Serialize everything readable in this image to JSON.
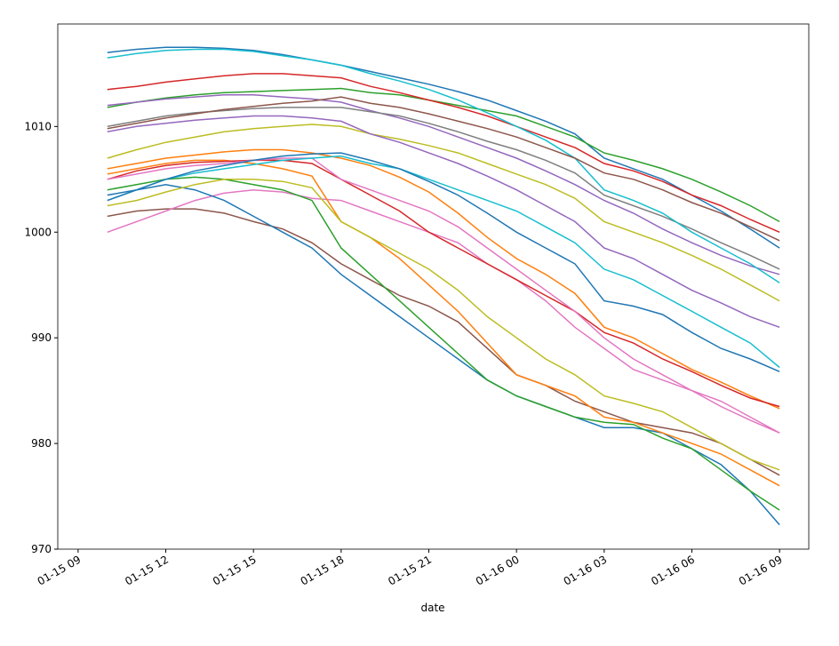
{
  "chart_data": {
    "type": "line",
    "xlabel": "date",
    "x": [
      "01-15 10",
      "01-15 11",
      "01-15 12",
      "01-15 13",
      "01-15 14",
      "01-15 15",
      "01-15 16",
      "01-15 17",
      "01-15 18",
      "01-15 19",
      "01-15 20",
      "01-15 21",
      "01-15 22",
      "01-15 23",
      "01-16 00",
      "01-16 01",
      "01-16 02",
      "01-16 03",
      "01-16 04",
      "01-16 05",
      "01-16 06",
      "01-16 07",
      "01-16 08",
      "01-16 09"
    ],
    "xlim": [
      "01-15 08",
      "01-16 10"
    ],
    "xticks": [
      "01-15 09",
      "01-15 12",
      "01-15 15",
      "01-15 18",
      "01-15 21",
      "01-16 00",
      "01-16 03",
      "01-16 06",
      "01-16 09"
    ],
    "ylim": [
      970,
      1019.7
    ],
    "yticks": [
      970,
      980,
      990,
      1000,
      1010
    ],
    "series": [
      {
        "color": "#1f77b4",
        "values": [
          1017,
          1017.3,
          1017.5,
          1017.5,
          1017.4,
          1017.2,
          1016.8,
          1016.3,
          1015.8,
          1015.2,
          1014.6,
          1014,
          1013.3,
          1012.5,
          1011.5,
          1010.5,
          1009.3,
          1007,
          1006,
          1005,
          1003.5,
          1002,
          1000.3,
          998.5
        ]
      },
      {
        "color": "#ff7f0e",
        "values": [
          1006,
          1006.5,
          1007,
          1007.3,
          1007.6,
          1007.8,
          1007.8,
          1007.5,
          1007,
          1006.3,
          1005.2,
          1003.8,
          1001.8,
          999.5,
          997.5,
          996,
          994.2,
          991,
          990,
          988.5,
          987,
          985.8,
          984.5,
          983.3
        ]
      },
      {
        "color": "#2ca02c",
        "values": [
          1011.8,
          1012.3,
          1012.7,
          1013,
          1013.2,
          1013.3,
          1013.4,
          1013.5,
          1013.6,
          1013.2,
          1013,
          1012.5,
          1012,
          1011.5,
          1011,
          1010,
          1009,
          1007.5,
          1006.8,
          1006,
          1005,
          1003.8,
          1002.5,
          1001
        ]
      },
      {
        "color": "#d62728",
        "values": [
          1013.5,
          1013.8,
          1014.2,
          1014.5,
          1014.8,
          1015,
          1015,
          1014.8,
          1014.6,
          1013.8,
          1013.2,
          1012.5,
          1011.8,
          1011,
          1010,
          1009,
          1008,
          1006.5,
          1005.8,
          1004.8,
          1003.5,
          1002.5,
          1001.2,
          1000
        ]
      },
      {
        "color": "#9467bd",
        "values": [
          1012,
          1012.3,
          1012.6,
          1012.8,
          1013,
          1013,
          1012.8,
          1012.6,
          1012.3,
          1011.5,
          1010.8,
          1010,
          1009,
          1008,
          1007,
          1005.8,
          1004.5,
          1003,
          1001.8,
          1000.3,
          999,
          997.8,
          996.8,
          996
        ]
      },
      {
        "color": "#8c564b",
        "values": [
          1001.5,
          1002,
          1002.2,
          1002.2,
          1001.8,
          1001,
          1000.3,
          999,
          997,
          995.5,
          994,
          993,
          991.5,
          989,
          986.5,
          985.5,
          984,
          983,
          982,
          981.5,
          981,
          980,
          978.5,
          977
        ]
      },
      {
        "color": "#e377c2",
        "values": [
          1000,
          1001,
          1002,
          1003,
          1003.7,
          1004,
          1003.8,
          1003.2,
          1003,
          1002,
          1001,
          1000,
          999,
          997,
          995.5,
          993.5,
          991,
          989,
          987,
          986,
          985,
          983.5,
          982.2,
          981
        ]
      },
      {
        "color": "#7f7f7f",
        "values": [
          1010,
          1010.5,
          1011,
          1011.3,
          1011.5,
          1011.7,
          1011.8,
          1011.8,
          1011.8,
          1011.4,
          1011,
          1010.3,
          1009.5,
          1008.6,
          1007.8,
          1006.8,
          1005.6,
          1003.5,
          1002.5,
          1001.5,
          1000.3,
          999,
          997.8,
          996.5
        ]
      },
      {
        "color": "#bcbd22",
        "values": [
          1007,
          1007.8,
          1008.5,
          1009,
          1009.5,
          1009.8,
          1010,
          1010.2,
          1010,
          1009.3,
          1008.8,
          1008.2,
          1007.5,
          1006.5,
          1005.5,
          1004.5,
          1003.2,
          1001,
          1000,
          999,
          997.8,
          996.5,
          995,
          993.5
        ]
      },
      {
        "color": "#17becf",
        "values": [
          1016.5,
          1016.9,
          1017.2,
          1017.3,
          1017.3,
          1017.1,
          1016.7,
          1016.3,
          1015.8,
          1015,
          1014.3,
          1013.5,
          1012.5,
          1011.3,
          1010,
          1008.7,
          1007,
          1004,
          1003,
          1001.8,
          1000,
          998.5,
          997,
          995.2
        ]
      },
      {
        "color": "#1f77b4",
        "values": [
          1003.5,
          1004,
          1004.5,
          1004,
          1003,
          1001.5,
          1000,
          998.5,
          996,
          994,
          992,
          990,
          988,
          986,
          984.5,
          983.5,
          982.5,
          981.5,
          981.5,
          981,
          979.5,
          978,
          975.5,
          972.3
        ]
      },
      {
        "color": "#ff7f0e",
        "values": [
          1005.5,
          1006,
          1006.5,
          1006.8,
          1006.8,
          1006.5,
          1006,
          1005.3,
          1001,
          999.5,
          997.5,
          995,
          992.5,
          989.5,
          986.5,
          985.5,
          984.5,
          982.5,
          982,
          981,
          980,
          979,
          977.5,
          976
        ]
      },
      {
        "color": "#2ca02c",
        "values": [
          1004,
          1004.5,
          1005,
          1005.2,
          1005,
          1004.5,
          1004,
          1003,
          998.5,
          996,
          993.5,
          991,
          988.5,
          986,
          984.5,
          983.5,
          982.5,
          982,
          981.8,
          980.5,
          979.5,
          977.5,
          975.5,
          973.7
        ]
      },
      {
        "color": "#d62728",
        "values": [
          1005,
          1005.8,
          1006.3,
          1006.6,
          1006.7,
          1006.8,
          1006.8,
          1006.5,
          1005,
          1003.5,
          1002,
          1000,
          998.5,
          997,
          995.5,
          994,
          992.5,
          990.5,
          989.5,
          988,
          986.8,
          985.5,
          984.3,
          983.5
        ]
      },
      {
        "color": "#9467bd",
        "values": [
          1009.5,
          1010,
          1010.3,
          1010.6,
          1010.8,
          1011,
          1011,
          1010.8,
          1010.5,
          1009.3,
          1008.5,
          1007.5,
          1006.5,
          1005.3,
          1004,
          1002.5,
          1001,
          998.5,
          997.5,
          996,
          994.5,
          993.3,
          992,
          991
        ]
      },
      {
        "color": "#8c564b",
        "values": [
          1009.8,
          1010.3,
          1010.8,
          1011.2,
          1011.6,
          1011.9,
          1012.2,
          1012.4,
          1012.8,
          1012.2,
          1011.8,
          1011.2,
          1010.5,
          1009.8,
          1009,
          1008,
          1007,
          1005.6,
          1005,
          1004,
          1002.8,
          1001.8,
          1000.5,
          999.2
        ]
      },
      {
        "color": "#e377c2",
        "values": [
          1005,
          1005.5,
          1006,
          1006.3,
          1006.5,
          1006.8,
          1007,
          1007,
          1005,
          1004,
          1003,
          1002,
          1000.5,
          998.5,
          996.5,
          994.5,
          992.5,
          990,
          988,
          986.5,
          985,
          984,
          982.5,
          981
        ]
      },
      {
        "color": "#bcbd22",
        "values": [
          1002.5,
          1003,
          1003.8,
          1004.5,
          1005,
          1005,
          1004.8,
          1004.2,
          1001,
          999.5,
          998,
          996.5,
          994.5,
          992,
          990,
          988,
          986.5,
          984.5,
          983.8,
          983,
          981.5,
          980,
          978.5,
          977.5
        ]
      },
      {
        "color": "#17becf",
        "values": [
          1003,
          1004,
          1005,
          1005.6,
          1006,
          1006.4,
          1006.8,
          1007,
          1007.2,
          1006.5,
          1006,
          1005,
          1004,
          1003,
          1002,
          1000.5,
          999,
          996.5,
          995.5,
          994,
          992.5,
          991,
          989.5,
          987.2
        ]
      },
      {
        "color": "#1f77b4",
        "values": [
          1003,
          1004,
          1005,
          1005.8,
          1006.3,
          1006.8,
          1007.2,
          1007.4,
          1007.5,
          1006.8,
          1006,
          1004.8,
          1003.5,
          1001.8,
          1000,
          998.5,
          997,
          993.5,
          993,
          992.2,
          990.5,
          989,
          988,
          986.8
        ]
      }
    ]
  }
}
